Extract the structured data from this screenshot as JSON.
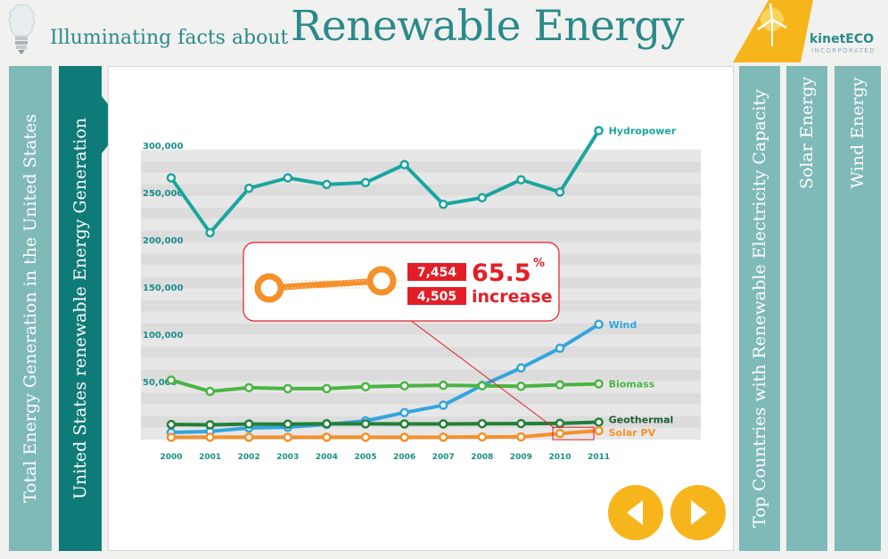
{
  "header": {
    "subtitle": "Illuminating facts about",
    "title": "Renewable Energy",
    "logo": {
      "name": "kinetECO",
      "sub": "INCORPORATED"
    }
  },
  "tabs": {
    "left": [
      {
        "label": "Total Energy Generation in the United States",
        "active": false
      },
      {
        "label": "United States renewable Energy Generation",
        "active": true
      }
    ],
    "right": [
      {
        "label": "Top Countries with Renewable Electricity Capacity"
      },
      {
        "label": "Solar Energy"
      },
      {
        "label": "Wind Energy"
      }
    ]
  },
  "colors": {
    "accent": "#2a8a8a",
    "tab": "#7fb9b8",
    "tab_active": "#0f7b78",
    "highlight": "#e31e26",
    "nav": "#f7b51c"
  },
  "chart_data": {
    "type": "line",
    "x": [
      "2000",
      "2001",
      "2002",
      "2003",
      "2004",
      "2005",
      "2006",
      "2007",
      "2008",
      "2009",
      "2010",
      "2011"
    ],
    "ylim": [
      0,
      300000
    ],
    "yticks": [
      {
        "value": 50000,
        "label": "50,000"
      },
      {
        "value": 100000,
        "label": "100,000"
      },
      {
        "value": 150000,
        "label": "150,000"
      },
      {
        "value": 200000,
        "label": "200,000"
      },
      {
        "value": 250000,
        "label": "250,000"
      },
      {
        "value": 300000,
        "label": "300,000"
      }
    ],
    "grid": true,
    "series": [
      {
        "name": "Hydropower",
        "color": "#1aa59f",
        "values": [
          275000,
          217000,
          264000,
          275000,
          268000,
          270000,
          289000,
          247000,
          254000,
          273000,
          260000,
          325000
        ]
      },
      {
        "name": "Wind",
        "color": "#33a5de",
        "values": [
          5600,
          6700,
          10400,
          11200,
          14100,
          17800,
          26600,
          34400,
          55400,
          73900,
          94700,
          120000
        ]
      },
      {
        "name": "Biomass",
        "color": "#4ab543",
        "values": [
          61000,
          49000,
          53000,
          52000,
          52000,
          54000,
          55000,
          55500,
          55000,
          54500,
          56000,
          57000
        ]
      },
      {
        "name": "Geothermal",
        "color": "#237f37",
        "values": [
          14000,
          13700,
          14500,
          14400,
          14800,
          14700,
          14600,
          14600,
          14900,
          15000,
          15200,
          16500
        ]
      },
      {
        "name": "Solar PV",
        "color": "#f5902a",
        "values": [
          500,
          550,
          560,
          530,
          580,
          550,
          510,
          610,
          860,
          890,
          4505,
          7454
        ]
      }
    ],
    "callout": {
      "new_value": "7,454",
      "old_value": "4,505",
      "percent": "65.5",
      "percent_sign": "%",
      "text": "increase"
    }
  },
  "nav": {
    "prev_icon": "triangle-left-icon",
    "next_icon": "triangle-right-icon"
  }
}
